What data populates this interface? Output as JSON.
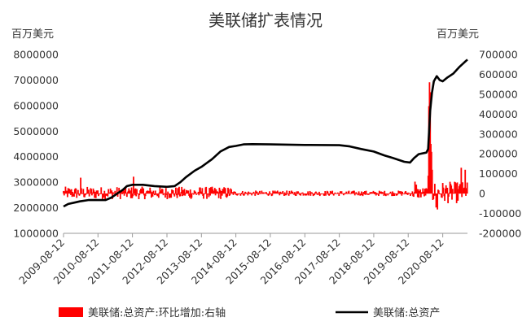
{
  "chart_data": {
    "type": "bar+line",
    "title": "美联储扩表情况",
    "left_axis": {
      "unit": "百万美元",
      "ylim": [
        1000000,
        8000000
      ],
      "ticks": [
        "8000000",
        "7000000",
        "6000000",
        "5000000",
        "4000000",
        "3000000",
        "2000000",
        "1000000"
      ]
    },
    "right_axis": {
      "unit": "百万美元",
      "ylim": [
        -200000,
        700000
      ],
      "ticks": [
        "700000",
        "600000",
        "500000",
        "400000",
        "300000",
        "200000",
        "100000",
        "0",
        "-100000",
        "-200000"
      ]
    },
    "x_ticks": [
      "2009-08-12",
      "2010-08-12",
      "2011-08-12",
      "2012-08-12",
      "2013-08-12",
      "2014-08-12",
      "2015-08-12",
      "2016-08-12",
      "2017-08-12",
      "2018-08-12",
      "2019-08-12",
      "2020-08-12"
    ],
    "x_range": [
      "2009-08-12",
      "2021-05-01"
    ],
    "series": [
      {
        "name": "美联储:总资产:环比增加:右轴",
        "kind": "bar",
        "axis": "right",
        "color": "#ff0000"
      },
      {
        "name": "美联储:总资产",
        "kind": "line",
        "axis": "left",
        "color": "#000000",
        "points": [
          [
            "2009-08-12",
            2050000
          ],
          [
            "2009-10-01",
            2150000
          ],
          [
            "2009-12-01",
            2200000
          ],
          [
            "2010-02-01",
            2250000
          ],
          [
            "2010-05-01",
            2300000
          ],
          [
            "2010-08-12",
            2300000
          ],
          [
            "2010-11-01",
            2300000
          ],
          [
            "2011-01-01",
            2400000
          ],
          [
            "2011-03-01",
            2550000
          ],
          [
            "2011-05-01",
            2700000
          ],
          [
            "2011-06-15",
            2850000
          ],
          [
            "2011-08-12",
            2900000
          ],
          [
            "2011-12-01",
            2900000
          ],
          [
            "2012-04-01",
            2850000
          ],
          [
            "2012-08-12",
            2820000
          ],
          [
            "2012-11-01",
            2850000
          ],
          [
            "2013-01-01",
            3000000
          ],
          [
            "2013-03-01",
            3200000
          ],
          [
            "2013-06-01",
            3450000
          ],
          [
            "2013-08-12",
            3600000
          ],
          [
            "2013-12-01",
            3900000
          ],
          [
            "2014-03-01",
            4200000
          ],
          [
            "2014-06-01",
            4380000
          ],
          [
            "2014-08-12",
            4420000
          ],
          [
            "2014-11-01",
            4480000
          ],
          [
            "2015-02-01",
            4490000
          ],
          [
            "2015-08-12",
            4480000
          ],
          [
            "2016-08-12",
            4460000
          ],
          [
            "2017-08-12",
            4450000
          ],
          [
            "2017-12-01",
            4400000
          ],
          [
            "2018-04-01",
            4300000
          ],
          [
            "2018-08-12",
            4200000
          ],
          [
            "2018-12-01",
            4050000
          ],
          [
            "2019-03-01",
            3950000
          ],
          [
            "2019-07-01",
            3800000
          ],
          [
            "2019-09-01",
            3770000
          ],
          [
            "2019-10-15",
            3950000
          ],
          [
            "2019-12-01",
            4100000
          ],
          [
            "2020-02-20",
            4160000
          ],
          [
            "2020-03-10",
            4300000
          ],
          [
            "2020-03-20",
            4950000
          ],
          [
            "2020-04-01",
            5800000
          ],
          [
            "2020-04-20",
            6500000
          ],
          [
            "2020-05-10",
            6950000
          ],
          [
            "2020-06-10",
            7150000
          ],
          [
            "2020-07-10",
            7000000
          ],
          [
            "2020-08-12",
            6950000
          ],
          [
            "2020-10-01",
            7100000
          ],
          [
            "2020-12-01",
            7250000
          ],
          [
            "2021-02-01",
            7500000
          ],
          [
            "2021-04-01",
            7700000
          ],
          [
            "2021-05-01",
            7800000
          ]
        ]
      }
    ],
    "legend_position": "bottom",
    "grid": false
  }
}
